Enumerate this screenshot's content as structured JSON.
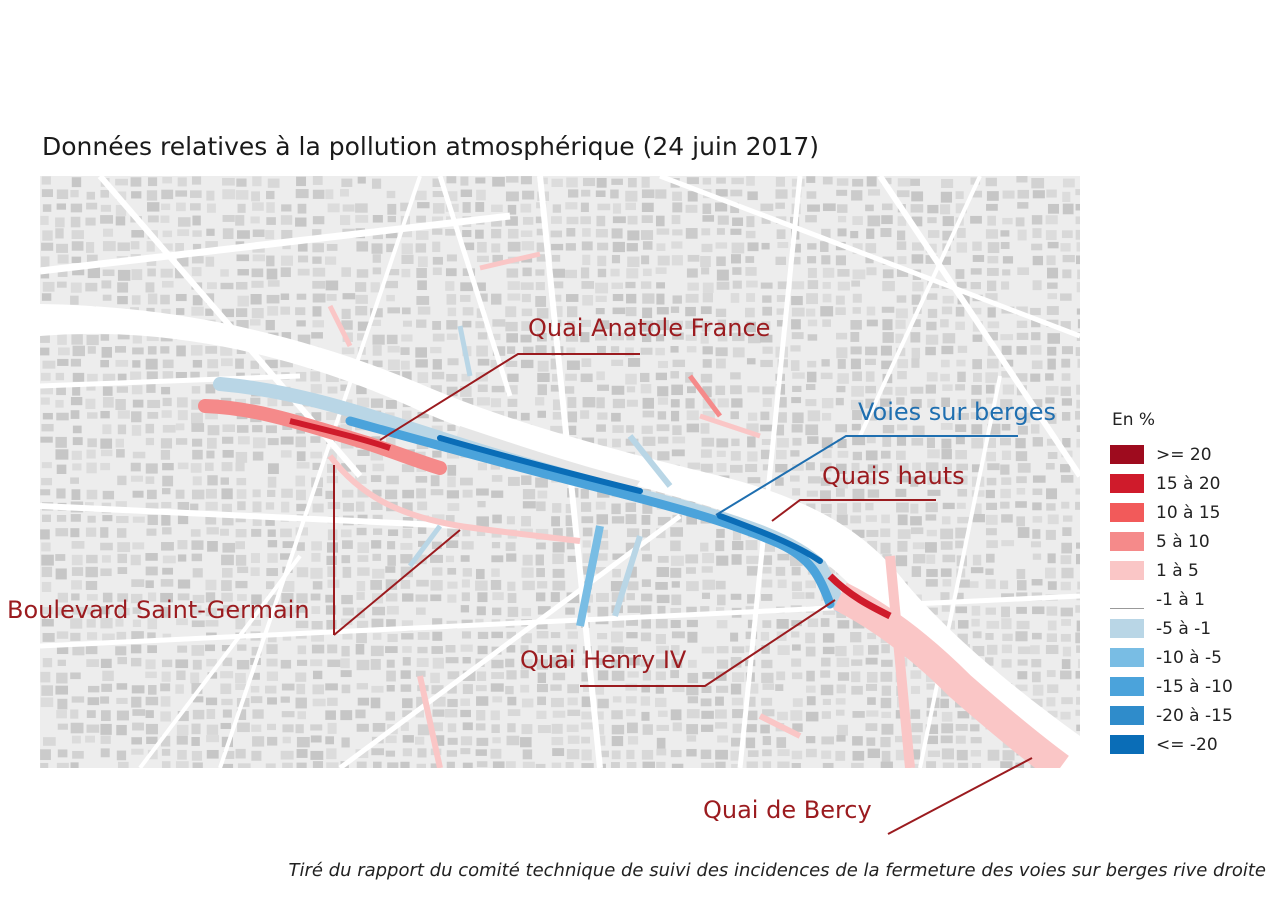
{
  "title": "Données relatives à la pollution atmosphérique  (24 juin 2017)",
  "labels": {
    "quai_anatole_france": "Quai Anatole France",
    "voies_sur_berges": "Voies sur berges",
    "quais_hauts": "Quais hauts",
    "boulevard_saint_germain": "Boulevard Saint-Germain",
    "quai_henry_iv": "Quai Henry IV",
    "quai_de_bercy": "Quai de Bercy"
  },
  "legend": {
    "title": "En %",
    "items": [
      {
        "label": ">= 20",
        "color": "#9e0b1e"
      },
      {
        "label": "15 à 20",
        "color": "#cf1b2b"
      },
      {
        "label": "10 à 15",
        "color": "#f25a5a"
      },
      {
        "label": "5 à 10",
        "color": "#f58a8a"
      },
      {
        "label": "1 à 5",
        "color": "#fac6c6"
      },
      {
        "label": "-1 à 1",
        "color": "#ffffff"
      },
      {
        "label": "-5 à -1",
        "color": "#b9d6e6"
      },
      {
        "label": "-10 à -5",
        "color": "#79bde4"
      },
      {
        "label": "-15 à -10",
        "color": "#4ba3db"
      },
      {
        "label": "-20 à -15",
        "color": "#2f8ccb"
      },
      {
        "label": "<= -20",
        "color": "#0a6db7"
      }
    ]
  },
  "colors": {
    "callout_red": "#9b1b1f",
    "callout_blue": "#1f6fb0",
    "map_background": "#ededed",
    "river": "#ffffff"
  },
  "footnote": "Tiré du rapport du comité technique de suivi des incidences de la fermeture des voies sur berges rive droite"
}
